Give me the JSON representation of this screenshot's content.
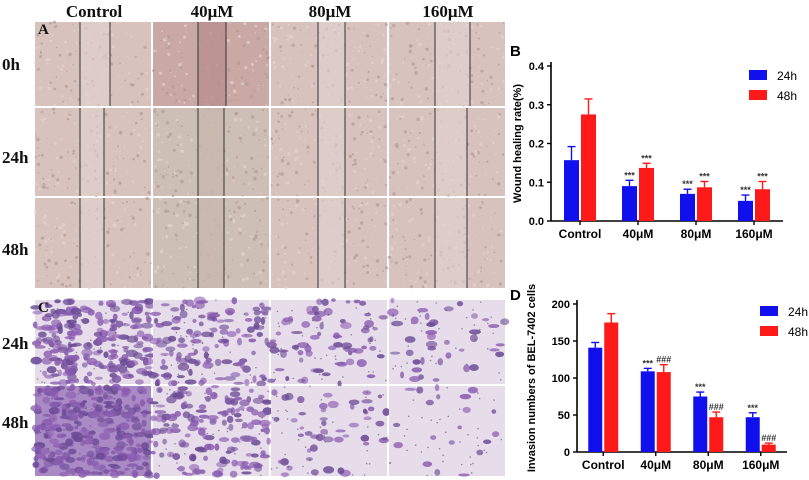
{
  "figure": {
    "columns": [
      "Control",
      "40μM",
      "80μM",
      "160μM"
    ],
    "wound_rows": [
      "0h",
      "24h",
      "48h"
    ],
    "invasion_rows": [
      "24h",
      "48h"
    ],
    "panel_labels": {
      "a": "A",
      "b": "B",
      "c": "C",
      "d": "D"
    }
  },
  "colors": {
    "series_24h": "#1010ee",
    "series_48h": "#ff1a1a",
    "wound_tile": "#d8c2bd",
    "invasion_tile": "#e6dcea",
    "stain": "#8a5cb0"
  },
  "chart_data": [
    {
      "type": "bar",
      "panel": "B",
      "categories": [
        "Control",
        "40μM",
        "80μM",
        "160μM"
      ],
      "ylabel": "Wound healing rate(%)",
      "ylim": [
        0,
        0.4
      ],
      "yticks": [
        "0.0",
        "0.1",
        "0.2",
        "0.3",
        "0.4"
      ],
      "legend_position": "top-right",
      "series": [
        {
          "name": "24h",
          "values": [
            0.157,
            0.09,
            0.07,
            0.052
          ],
          "errors": [
            0.035,
            0.015,
            0.012,
            0.015
          ],
          "annotations": [
            "",
            "***",
            "***",
            "***"
          ]
        },
        {
          "name": "48h",
          "values": [
            0.275,
            0.137,
            0.087,
            0.082
          ],
          "errors": [
            0.04,
            0.012,
            0.015,
            0.02
          ],
          "annotations": [
            "",
            "***",
            "***",
            "***"
          ]
        }
      ]
    },
    {
      "type": "bar",
      "panel": "D",
      "categories": [
        "Control",
        "40μM",
        "80μM",
        "160μM"
      ],
      "ylabel": "Invasion numbers of BEL-7402 cells",
      "ylim": [
        0,
        200
      ],
      "yticks": [
        "0",
        "50",
        "100",
        "150",
        "200"
      ],
      "legend_position": "top-right",
      "series": [
        {
          "name": "24h",
          "values": [
            141,
            109,
            75,
            47
          ],
          "errors": [
            7,
            4,
            6,
            6
          ],
          "annotations": [
            "",
            "***",
            "***",
            "***"
          ]
        },
        {
          "name": "48h",
          "values": [
            175,
            108,
            47,
            10
          ],
          "errors": [
            12,
            10,
            7,
            2
          ],
          "annotations": [
            "",
            "###",
            "###",
            "###"
          ]
        }
      ]
    }
  ]
}
